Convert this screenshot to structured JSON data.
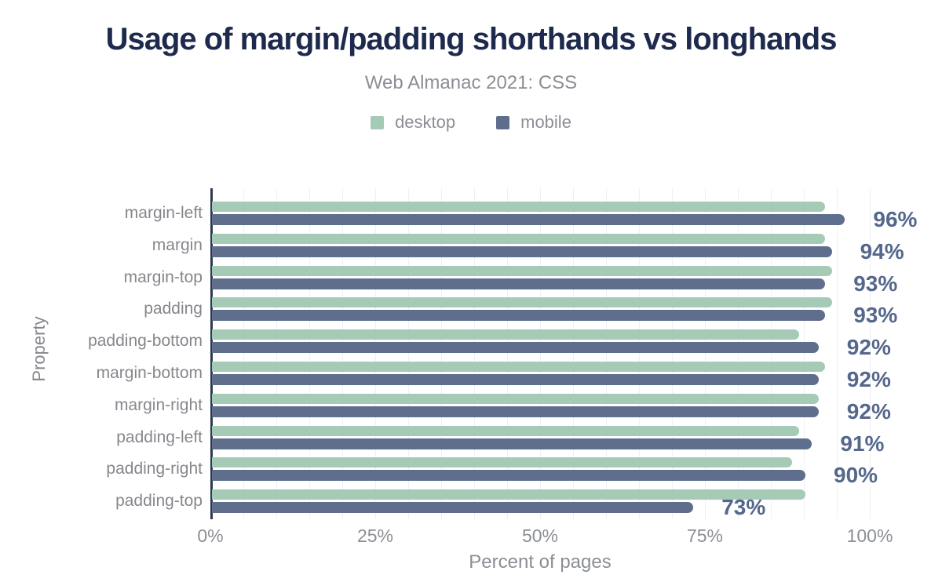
{
  "header": {
    "title": "Usage of margin/padding shorthands vs longhands",
    "subtitle": "Web Almanac 2021: CSS"
  },
  "legend": [
    {
      "label": "desktop",
      "color": "#a5cab6"
    },
    {
      "label": "mobile",
      "color": "#5e6e8c"
    }
  ],
  "colors": {
    "title_text": "#1e2a4d",
    "muted_text": "#8b8e94",
    "category_text": "#85878c",
    "value_label_text": "#55678c",
    "axis_line": "#2e3950",
    "gridline": "#f0f0f3",
    "desktop_bar": "#a5cab6",
    "mobile_bar": "#5e6e8c"
  },
  "chart_data": {
    "type": "bar",
    "orientation": "horizontal",
    "title": "Usage of margin/padding shorthands vs longhands",
    "subtitle": "Web Almanac 2021: CSS",
    "categories": [
      "margin-left",
      "margin",
      "margin-top",
      "padding",
      "padding-bottom",
      "margin-bottom",
      "margin-right",
      "padding-left",
      "padding-right",
      "padding-top"
    ],
    "series": [
      {
        "name": "desktop",
        "color": "#a5cab6",
        "values": [
          93,
          93,
          94,
          94,
          89,
          93,
          92,
          89,
          88,
          90
        ]
      },
      {
        "name": "mobile",
        "color": "#5e6e8c",
        "values": [
          96,
          94,
          93,
          93,
          92,
          92,
          92,
          91,
          90,
          73
        ]
      }
    ],
    "data_labels": [
      "96%",
      "94%",
      "93%",
      "93%",
      "92%",
      "92%",
      "92%",
      "91%",
      "90%",
      "73%"
    ],
    "data_labels_series": "mobile",
    "xlabel": "Percent of pages",
    "ylabel": "Property",
    "xlim": [
      0,
      100
    ],
    "x_ticks": [
      {
        "value": 0,
        "label": "0%"
      },
      {
        "value": 25,
        "label": "25%"
      },
      {
        "value": 50,
        "label": "50%"
      },
      {
        "value": 75,
        "label": "75%"
      },
      {
        "value": 100,
        "label": "100%"
      }
    ],
    "grid": "vertical, minor every 5%",
    "legend_position": "top"
  }
}
